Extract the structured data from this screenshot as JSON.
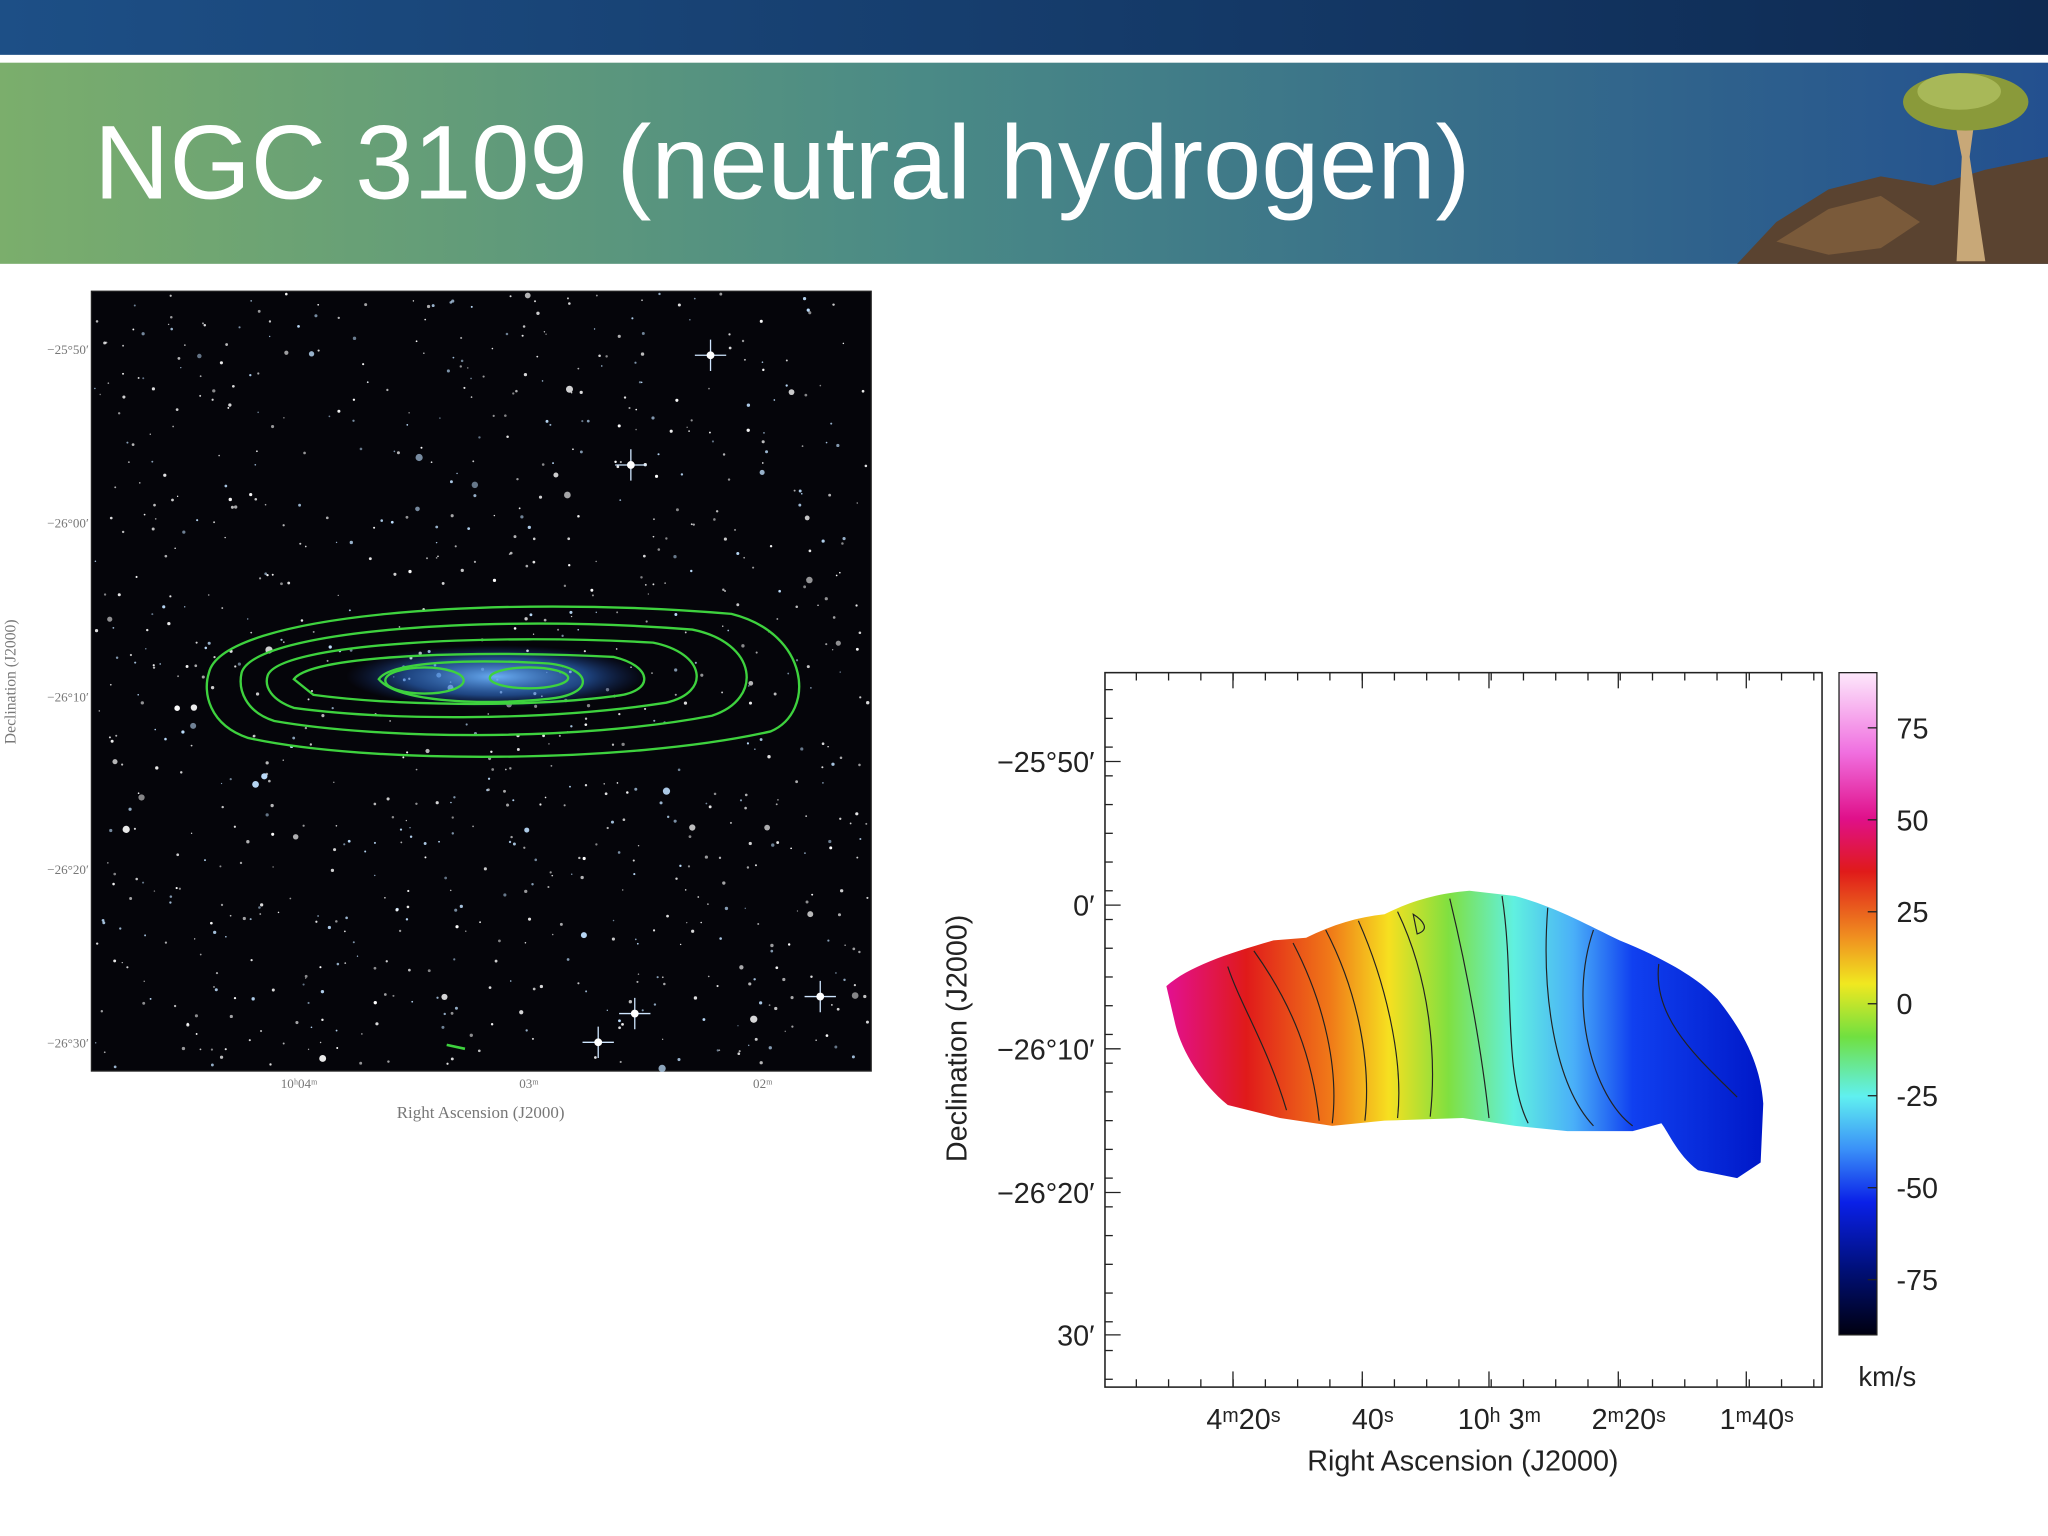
{
  "title": "NGC 3109 (neutral hydrogen)",
  "left_figure": {
    "y_axis_label": "Declination (J2000)",
    "x_axis_label": "Right Ascension (J2000)",
    "y_tick_labels": [
      "−25°50′",
      "−26°00′",
      "−26°10′",
      "−26°20′",
      "−26°30′"
    ],
    "x_tick_labels": [
      "10ʰ04ᵐ",
      "03ᵐ",
      "02ᵐ"
    ]
  },
  "right_figure": {
    "y_axis_label": "Declination (J2000)",
    "x_axis_label": "Right Ascension (J2000)",
    "y_tick_labels": [
      "−25°50′",
      "0′",
      "−26°10′",
      "−26°20′",
      "30′"
    ],
    "x_tick_labels": [
      "4ᵐ20ˢ",
      "40ˢ",
      "10ʰ 3ᵐ",
      "2ᵐ20ˢ",
      "1ᵐ40ˢ"
    ],
    "colorbar": {
      "lim": [
        -90,
        90
      ],
      "ticks": [
        75,
        50,
        25,
        0,
        -25,
        -50,
        -75
      ],
      "unit": "km/s"
    }
  }
}
